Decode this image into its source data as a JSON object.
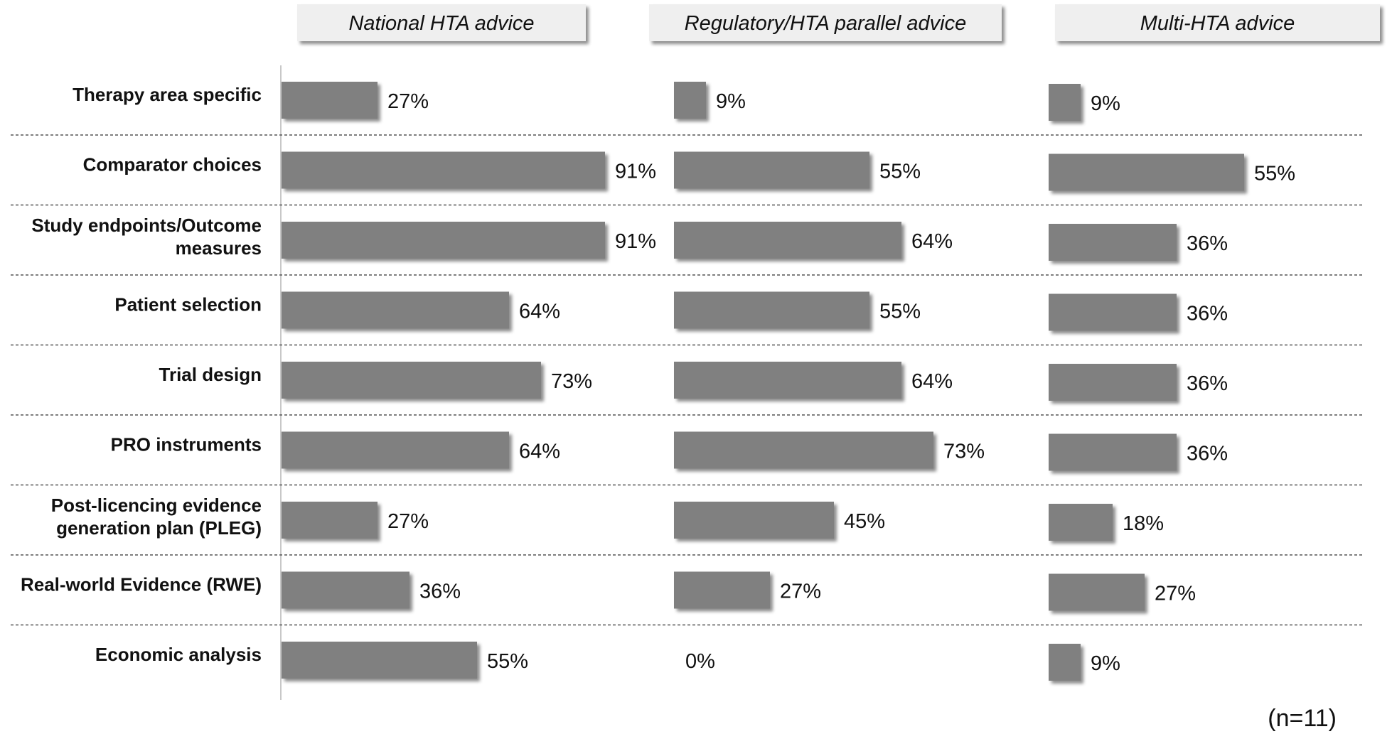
{
  "chart_data": {
    "type": "bar",
    "orientation": "horizontal",
    "panels": [
      {
        "name": "National HTA advice",
        "values": [
          27,
          91,
          91,
          64,
          73,
          64,
          27,
          36,
          55
        ],
        "value_labels": [
          "27%",
          "91%",
          "91%",
          "64%",
          "73%",
          "64%",
          "27%",
          "36%",
          "55%"
        ]
      },
      {
        "name": "Regulatory/HTA parallel advice",
        "values": [
          9,
          55,
          64,
          55,
          64,
          73,
          45,
          27,
          0
        ],
        "value_labels": [
          "9%",
          "55%",
          "64%",
          "55%",
          "64%",
          "73%",
          "45%",
          "27%",
          "0%"
        ]
      },
      {
        "name": "Multi-HTA advice",
        "values": [
          9,
          55,
          36,
          36,
          36,
          36,
          18,
          27,
          9
        ],
        "value_labels": [
          "9%",
          "55%",
          "36%",
          "36%",
          "36%",
          "36%",
          "18%",
          "27%",
          "9%"
        ]
      }
    ],
    "categories": [
      [
        "Therapy area specific"
      ],
      [
        "Comparator choices"
      ],
      [
        "Study endpoints/Outcome",
        "measures"
      ],
      [
        "Patient selection"
      ],
      [
        "Trial design"
      ],
      [
        "PRO instruments"
      ],
      [
        "Post-licencing evidence",
        "generation plan (PLEG)"
      ],
      [
        "Real-world Evidence (RWE)"
      ],
      [
        "Economic analysis"
      ]
    ],
    "unit": "%",
    "xlim": [
      0,
      100
    ],
    "note": "(n=11)",
    "bar_color": "#808080",
    "header_fill": "#efefef"
  }
}
